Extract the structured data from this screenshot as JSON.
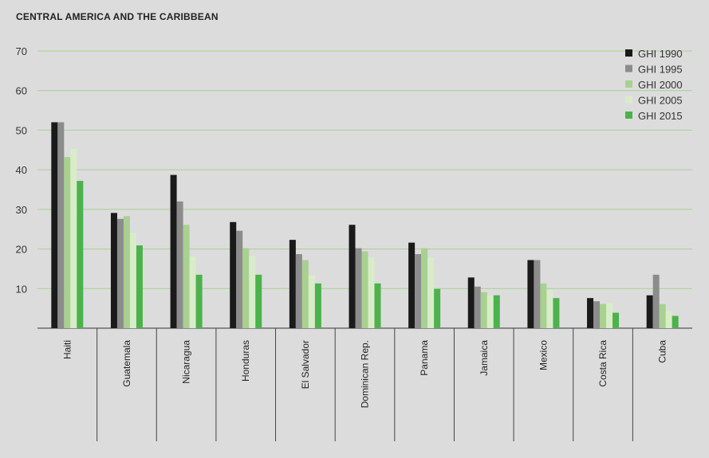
{
  "chart_data": {
    "type": "bar",
    "title": "CENTRAL AMERICA AND THE CARIBBEAN",
    "categories": [
      "Haiti",
      "Guatemala",
      "Nicaragua",
      "Honduras",
      "El Salvador",
      "Dominican Rep.",
      "Panama",
      "Jamaica",
      "Mexico",
      "Costa Rica",
      "Cuba"
    ],
    "series": [
      {
        "name": "GHI 1990",
        "color": "#1a1a1a",
        "values": [
          52.0,
          29.1,
          38.7,
          26.8,
          22.3,
          26.1,
          21.6,
          12.8,
          17.2,
          7.6,
          8.3
        ]
      },
      {
        "name": "GHI 1995",
        "color": "#8c8c8c",
        "values": [
          52.0,
          27.6,
          32.0,
          24.6,
          18.7,
          20.2,
          18.7,
          10.5,
          17.2,
          6.8,
          13.5
        ]
      },
      {
        "name": "GHI 2000",
        "color": "#a8d090",
        "values": [
          43.2,
          28.3,
          26.1,
          20.2,
          17.2,
          19.4,
          20.2,
          9.1,
          11.3,
          6.1,
          6.1
        ]
      },
      {
        "name": "GHI 2005",
        "color": "#d9ecc9",
        "values": [
          45.3,
          24.1,
          18.1,
          18.3,
          13.3,
          17.8,
          17.8,
          8.2,
          9.6,
          6.3,
          4.3
        ]
      },
      {
        "name": "GHI 2015",
        "color": "#4cb24c",
        "values": [
          37.2,
          20.9,
          13.5,
          13.5,
          11.3,
          11.3,
          9.9,
          8.3,
          7.6,
          3.9,
          3.1
        ]
      }
    ],
    "yticks": [
      10,
      20,
      30,
      40,
      50,
      60,
      70
    ],
    "ylim": [
      0,
      70
    ],
    "grid": true,
    "legend_position": "top-right"
  }
}
